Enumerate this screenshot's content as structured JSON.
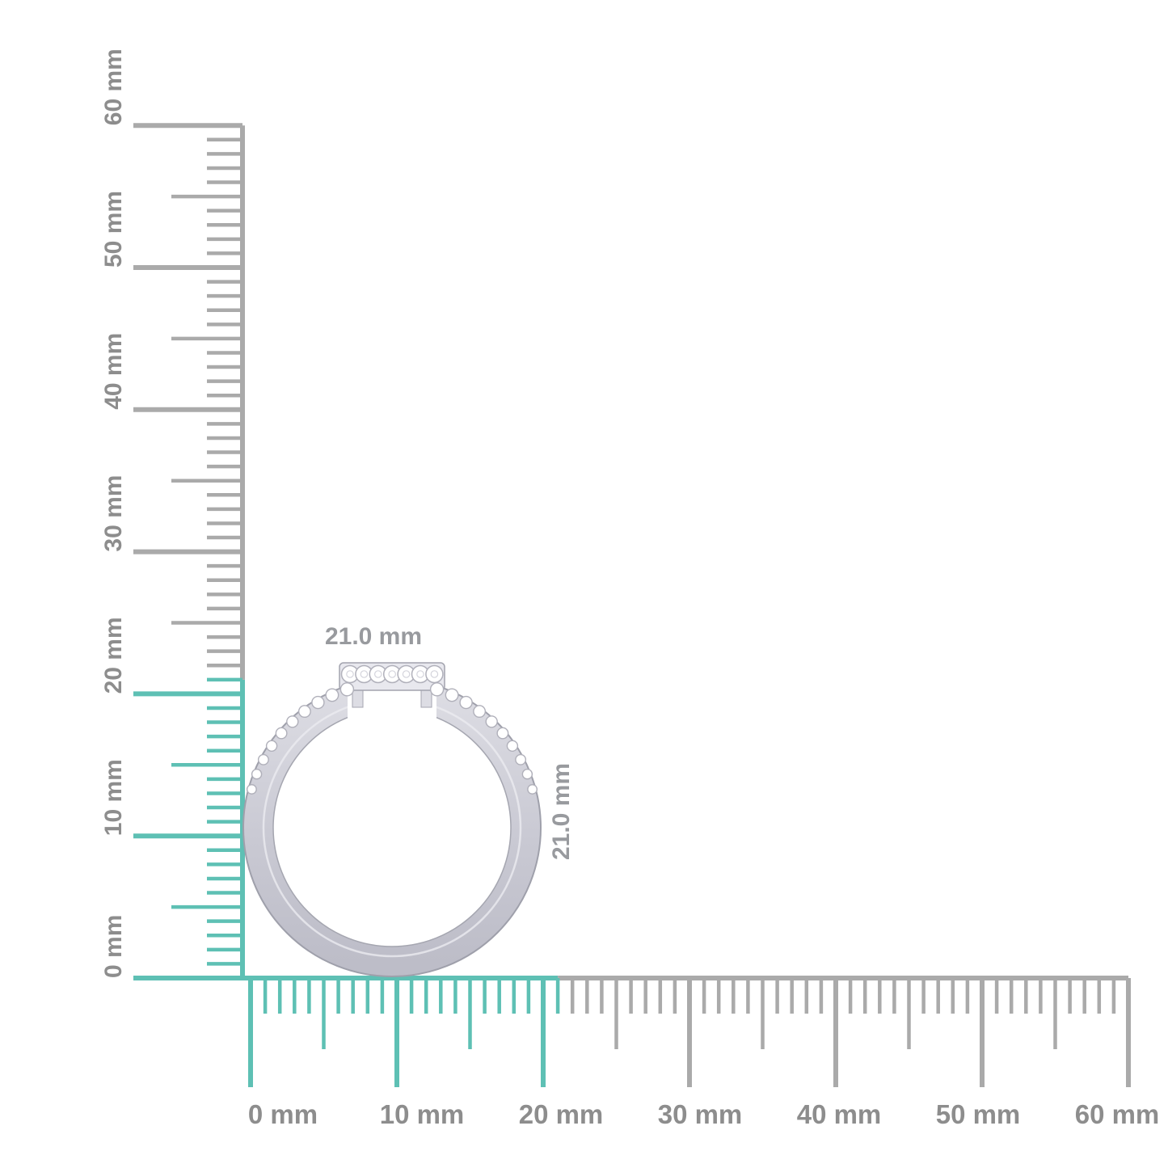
{
  "scene": {
    "background": "#ffffff",
    "description": "Side view of a pave diamond ring measured against millimetre rulers"
  },
  "rulers": {
    "unit": "mm",
    "min_value": 0,
    "max_value": 60,
    "major_step": 10,
    "medium_step": 5,
    "minor_step": 1,
    "highlight_until": 21,
    "colors": {
      "highlight": "#5ec0b4",
      "normal": "#aaaaaa",
      "label": "#8d8d8d"
    },
    "vertical_labels": [
      "0 mm",
      "10 mm",
      "20 mm",
      "30 mm",
      "40 mm",
      "50 mm",
      "60 mm"
    ],
    "horizontal_labels": [
      "0 mm",
      "10 mm",
      "20 mm",
      "30 mm",
      "40 mm",
      "50 mm",
      "60 mm"
    ]
  },
  "measurements": {
    "width_label": "21.0 mm",
    "height_label": "21.0 mm"
  },
  "ring": {
    "metal_color_light": "#dcdce3",
    "metal_color_dark": "#bdbdc8",
    "metal_edge_color": "#9fa0ab",
    "diamond_color": "#ffffff",
    "diamond_edge_color": "#b0b0ba",
    "head_stone_count": 7,
    "pave_stone_count_per_side": 10
  }
}
